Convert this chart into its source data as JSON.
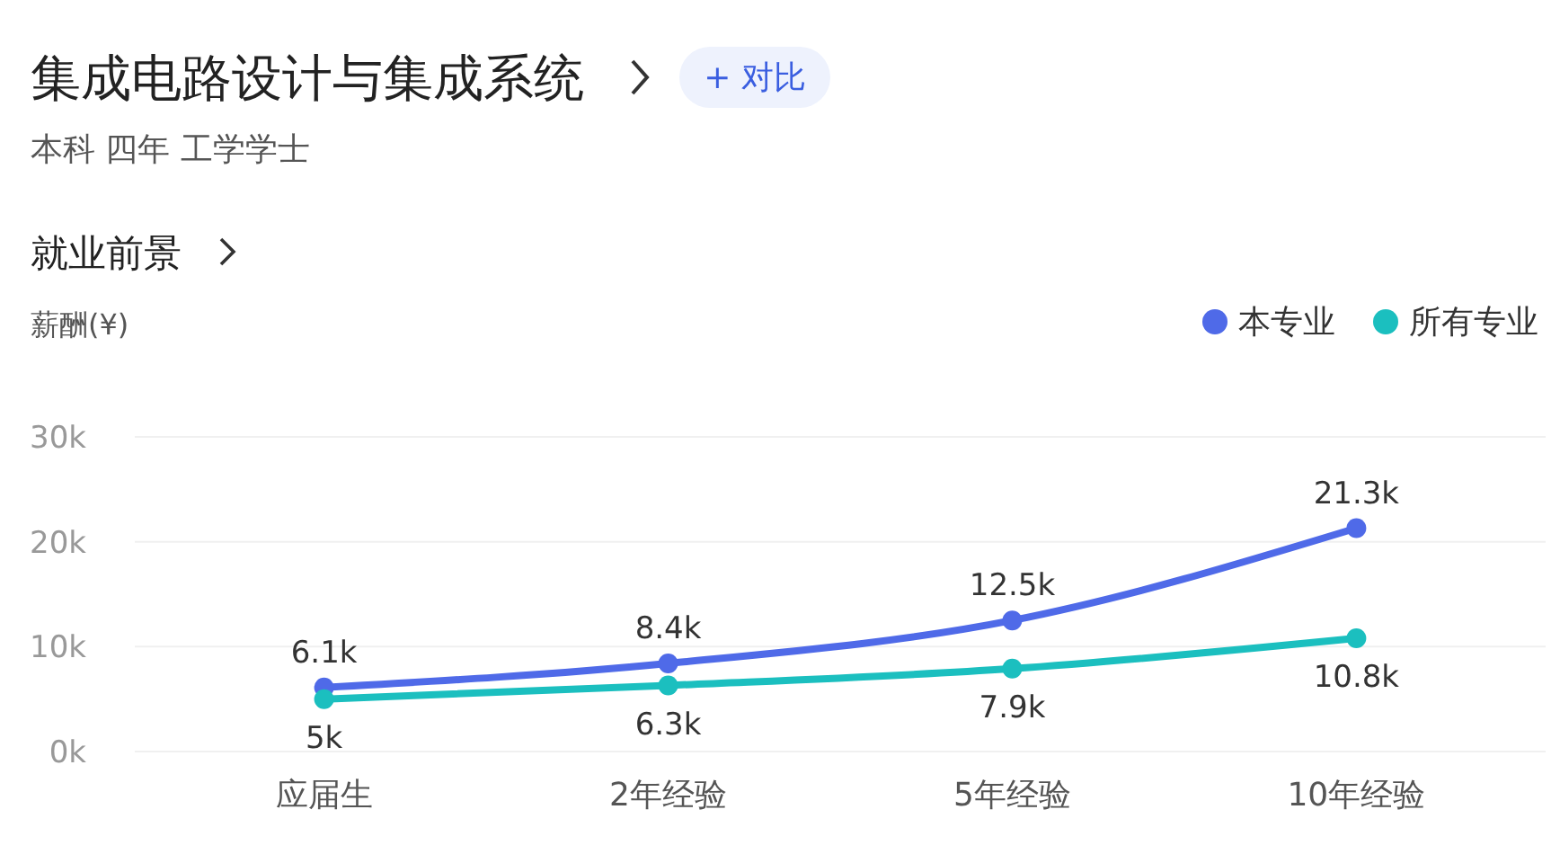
{
  "chart_data": {
    "type": "line",
    "title": "集成电路设计与集成系统",
    "subtitle": "本科 四年 工学学士",
    "annotations": [
      "+ 对比",
      "就业前景"
    ],
    "ylabel": "薪酬(¥)",
    "categories": [
      "应届生",
      "2年经验",
      "5年经验",
      "10年经验"
    ],
    "series": [
      {
        "name": "本专业",
        "color": "#4f6ae8",
        "values": [
          6100,
          8400,
          12500,
          21300
        ],
        "value_labels": [
          "6.1k",
          "8.4k",
          "12.5k",
          "21.3k"
        ]
      },
      {
        "name": "所有专业",
        "color": "#1bbfbf",
        "values": [
          5000,
          6300,
          7900,
          10800
        ],
        "value_labels": [
          "5k",
          "6.3k",
          "7.9k",
          "10.8k"
        ]
      }
    ],
    "ylim": [
      0,
      30000
    ],
    "yticks": [
      {
        "value": 0,
        "label": "0k"
      },
      {
        "value": 10000,
        "label": "10k"
      },
      {
        "value": 20000,
        "label": "20k"
      },
      {
        "value": 30000,
        "label": "30k"
      }
    ],
    "grid": "y",
    "legend": "top right",
    "marker": "circle",
    "line_style": "solid"
  }
}
